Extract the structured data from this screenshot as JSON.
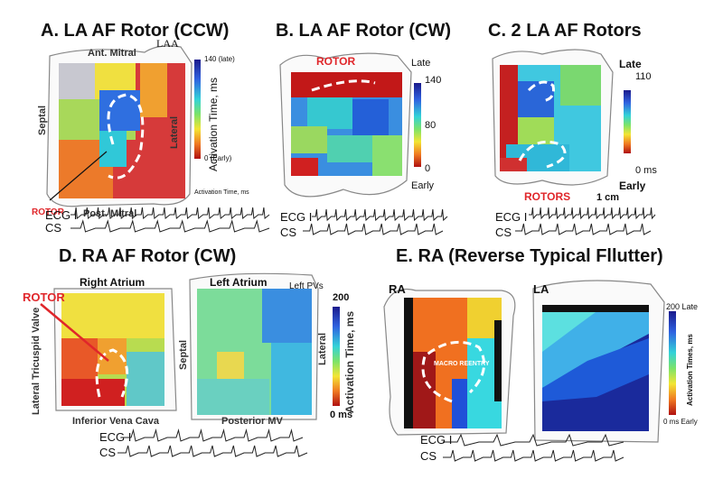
{
  "panels": [
    {
      "title": "A. LA AF Rotor (CCW)",
      "labels": {
        "top": "Ant. Mitral",
        "appendage": "LAA",
        "left": "Septal",
        "right": "Lateral",
        "bottom": "Post. Mitral",
        "marker": "ROTOR"
      },
      "colorbar": {
        "top": "140 (late)",
        "bottom": "0 (Early)",
        "axis": "Activation Time, ms",
        "note": "Activation Time, ms"
      },
      "traces": [
        "ECG I",
        "CS"
      ]
    },
    {
      "title": "B. LA AF Rotor (CW)",
      "labels": {
        "marker": "ROTOR"
      },
      "colorbar": {
        "top_word": "Late",
        "top": "140",
        "middle": "80",
        "bottom": "0",
        "bottom_word": "Early"
      },
      "traces": [
        "ECG I",
        "CS"
      ]
    },
    {
      "title": "C. 2 LA AF Rotors",
      "labels": {
        "marker": "ROTORS",
        "scale": "1 cm"
      },
      "colorbar": {
        "top_word": "Late",
        "top": "110",
        "bottom": "0 ms",
        "bottom_word": "Early"
      },
      "traces": [
        "ECG I",
        "CS"
      ]
    },
    {
      "title": "D. RA AF Rotor (CW)",
      "labels": {
        "right_atrium": "Right Atrium",
        "left_atrium": "Left Atrium",
        "pvs": "Left PVs",
        "marker": "ROTOR",
        "valve": "Lateral Tricuspid Valve",
        "septal": "Septal",
        "lateral": "Lateral",
        "ivc": "Inferior Vena Cava",
        "mv": "Posterior MV"
      },
      "colorbar": {
        "top": "200",
        "axis": "Activation Time, ms",
        "bottom": "0 ms"
      },
      "traces": [
        "ECG I",
        "CS"
      ]
    },
    {
      "title": "E. RA (Reverse Typical Fllutter)",
      "labels": {
        "ra": "RA",
        "la": "LA",
        "marker": "MACRO REENTRY"
      },
      "colorbar": {
        "top": "200 Late",
        "axis": "Activation Times, ms",
        "bottom": "0 ms Early"
      },
      "traces": [
        "ECG I",
        "CS"
      ]
    }
  ]
}
